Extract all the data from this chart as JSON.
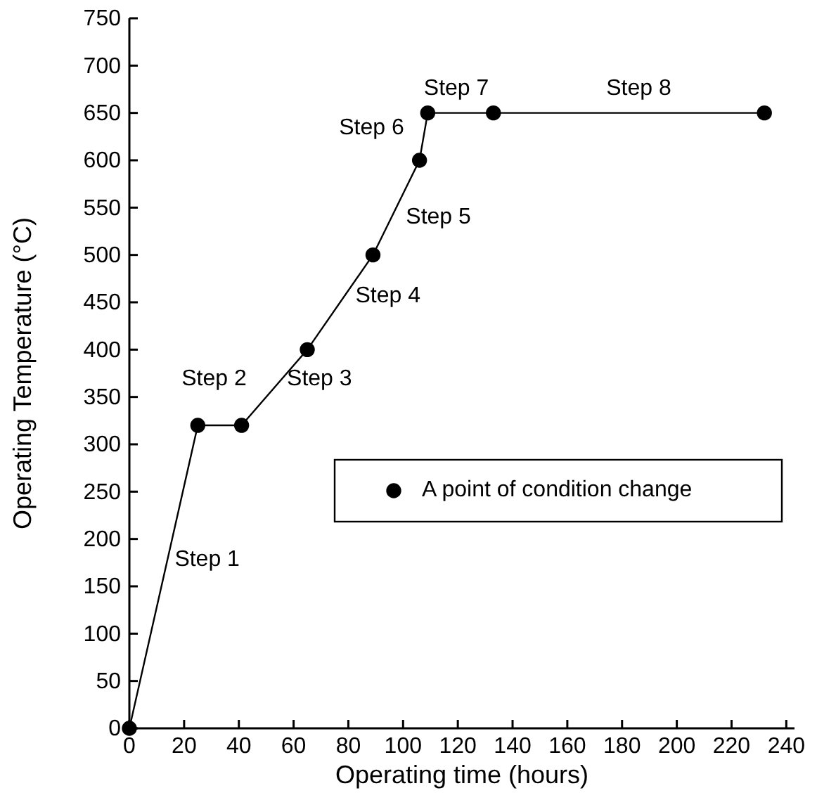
{
  "chart_data": {
    "type": "line",
    "xlabel": "Operating time (hours)",
    "ylabel": "Operating Temperature (°C)",
    "x": [
      0,
      25,
      41,
      65,
      89,
      106,
      109,
      133,
      232
    ],
    "series": [
      {
        "name": "A point of condition change",
        "color": "#000000",
        "values": [
          0,
          320,
          320,
          400,
          500,
          600,
          650,
          650,
          650
        ]
      }
    ],
    "xlim": [
      0,
      243
    ],
    "ylim": [
      0,
      750
    ],
    "xticks": [
      0,
      20,
      40,
      60,
      80,
      100,
      120,
      140,
      160,
      180,
      200,
      220,
      240
    ],
    "yticks": [
      0,
      50,
      100,
      150,
      200,
      250,
      300,
      350,
      400,
      450,
      500,
      550,
      600,
      650,
      700,
      750
    ],
    "marker": "circle",
    "legend": "right",
    "grid": false,
    "annotations": [
      "Step 1",
      "Step 2",
      "Step 3",
      "Step 4",
      "Step 5",
      "Step 6",
      "Step 7",
      "Step 8"
    ]
  }
}
